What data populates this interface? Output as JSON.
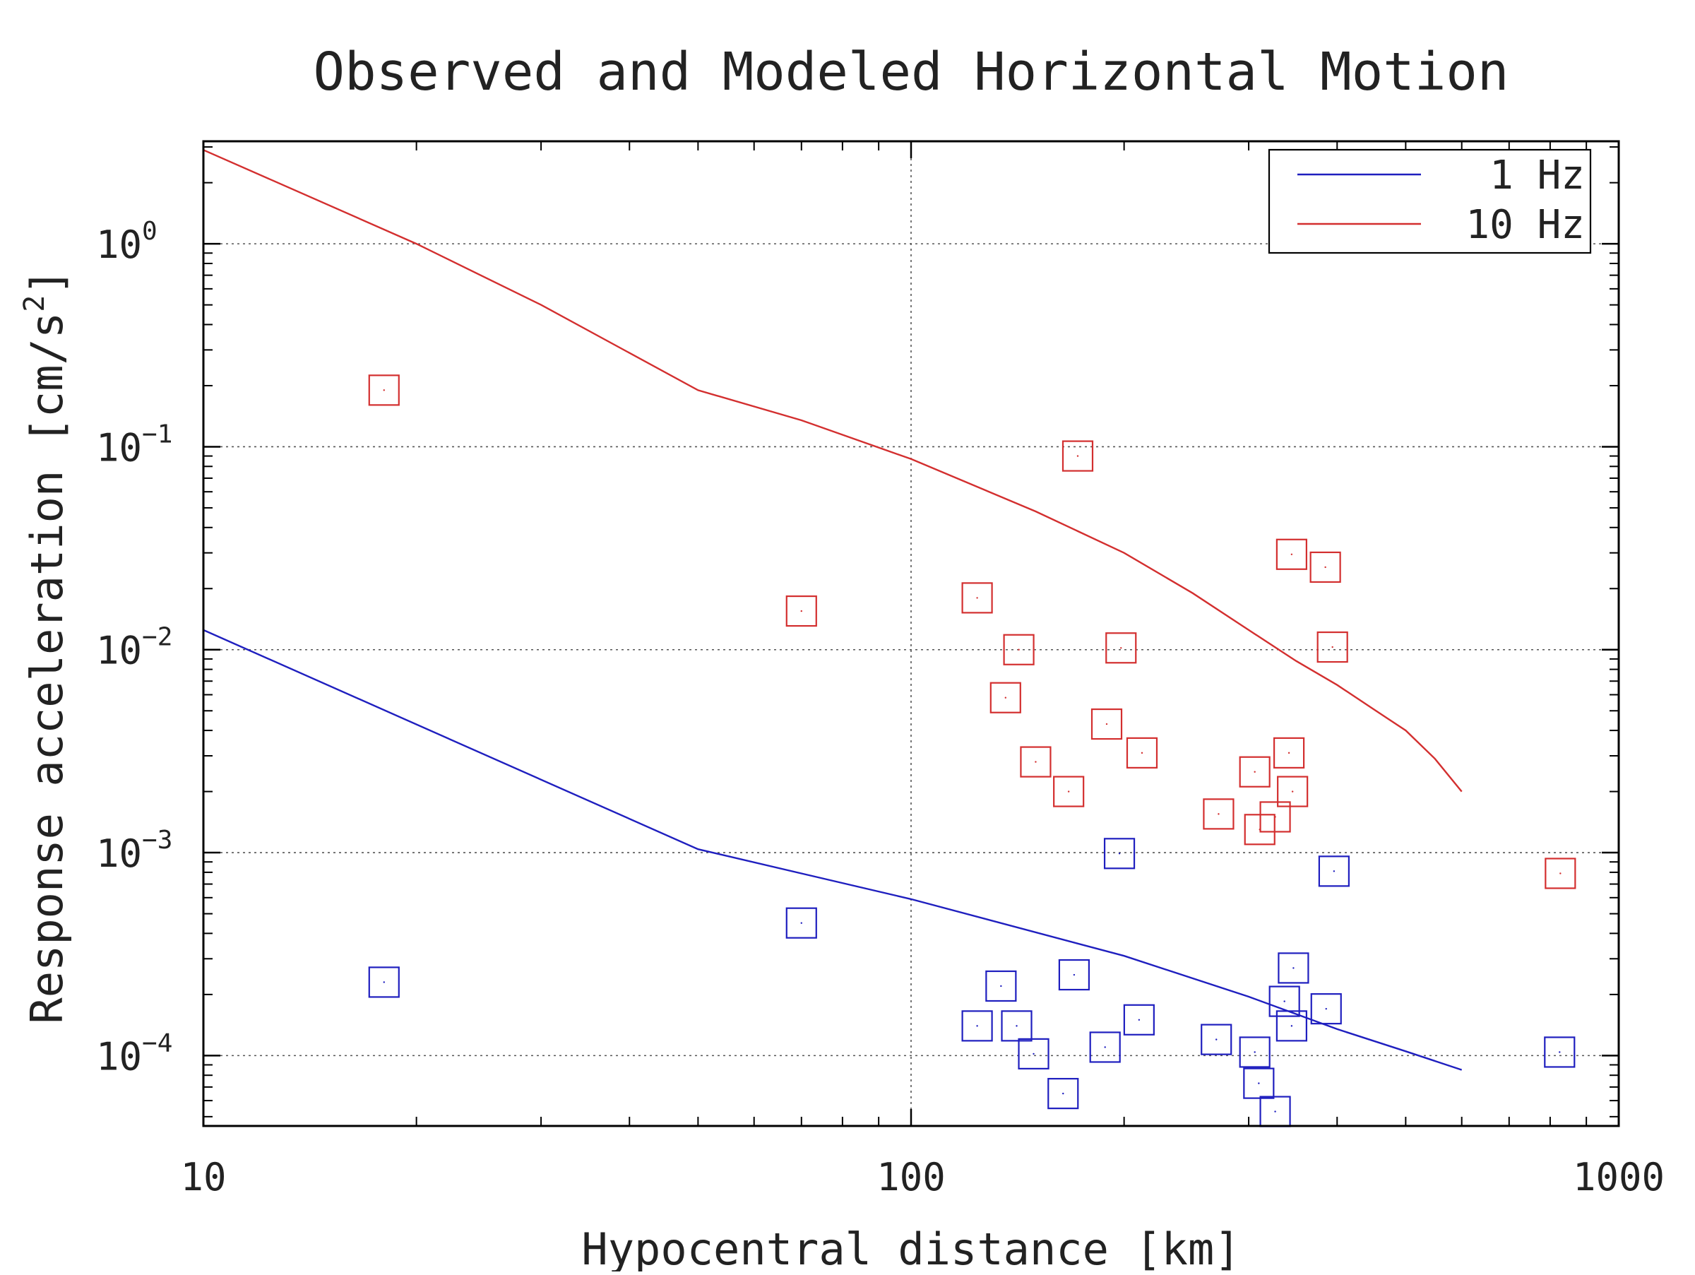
{
  "chart_data": {
    "type": "scatter",
    "title": "Observed and Modeled Horizontal Motion",
    "xlabel": "Hypocentral distance [km]",
    "ylabel": {
      "text": "Response acceleration [cm/s",
      "superscript": "2",
      "suffix": "]"
    },
    "x_scale": "log",
    "y_scale": "log",
    "xlim": [
      10,
      1000
    ],
    "ylim": [
      4.5e-05,
      3.2
    ],
    "x_ticks": [
      {
        "value": 10,
        "label": "10"
      },
      {
        "value": 100,
        "label": "100"
      },
      {
        "value": 1000,
        "label": "1000"
      }
    ],
    "y_ticks": [
      {
        "value": 1,
        "base": "10",
        "exp": "0"
      },
      {
        "value": 0.1,
        "base": "10",
        "exp": "−1"
      },
      {
        "value": 0.01,
        "base": "10",
        "exp": "−2"
      },
      {
        "value": 0.001,
        "base": "10",
        "exp": "−3"
      },
      {
        "value": 0.0001,
        "base": "10",
        "exp": "−4"
      }
    ],
    "grid": true,
    "legend_position": "top-right",
    "series": [
      {
        "name": "1 Hz",
        "color": "#1f1fbf",
        "line": {
          "x": [
            10,
            50,
            100,
            200,
            300,
            400,
            500,
            600
          ],
          "y": [
            0.0125,
            0.00104,
            0.00059,
            0.00031,
            0.000195,
            0.000135,
            0.000105,
            8.5e-05
          ]
        },
        "points": [
          {
            "x": 18,
            "y": 0.00023
          },
          {
            "x": 70,
            "y": 0.00045
          },
          {
            "x": 124,
            "y": 0.00014
          },
          {
            "x": 134,
            "y": 0.00022
          },
          {
            "x": 141,
            "y": 0.00014
          },
          {
            "x": 149,
            "y": 0.000102
          },
          {
            "x": 164,
            "y": 6.5e-05
          },
          {
            "x": 170,
            "y": 0.00025
          },
          {
            "x": 188,
            "y": 0.00011
          },
          {
            "x": 197,
            "y": 0.00099
          },
          {
            "x": 210,
            "y": 0.00015
          },
          {
            "x": 270,
            "y": 0.00012
          },
          {
            "x": 306,
            "y": 0.000104
          },
          {
            "x": 310,
            "y": 7.3e-05
          },
          {
            "x": 327,
            "y": 5.3e-05
          },
          {
            "x": 337,
            "y": 0.000185
          },
          {
            "x": 345,
            "y": 0.00014
          },
          {
            "x": 347,
            "y": 0.00027
          },
          {
            "x": 386,
            "y": 0.00017
          },
          {
            "x": 396,
            "y": 0.00081
          },
          {
            "x": 825,
            "y": 0.000104
          }
        ]
      },
      {
        "name": "10 Hz",
        "color": "#d32f2f",
        "line": {
          "x": [
            10,
            20,
            30,
            50,
            70,
            100,
            150,
            200,
            250,
            300,
            350,
            400,
            450,
            500,
            550,
            600
          ],
          "y": [
            2.9,
            1.0,
            0.5,
            0.19,
            0.135,
            0.087,
            0.048,
            0.03,
            0.019,
            0.0125,
            0.0088,
            0.0067,
            0.0051,
            0.004,
            0.0029,
            0.002
          ]
        },
        "points": [
          {
            "x": 18,
            "y": 0.19
          },
          {
            "x": 70,
            "y": 0.0155
          },
          {
            "x": 124,
            "y": 0.018
          },
          {
            "x": 136,
            "y": 0.0058
          },
          {
            "x": 142,
            "y": 0.01
          },
          {
            "x": 150,
            "y": 0.0028
          },
          {
            "x": 167,
            "y": 0.002
          },
          {
            "x": 172,
            "y": 0.09
          },
          {
            "x": 189,
            "y": 0.0043
          },
          {
            "x": 198,
            "y": 0.0102
          },
          {
            "x": 212,
            "y": 0.0031
          },
          {
            "x": 272,
            "y": 0.00155
          },
          {
            "x": 306,
            "y": 0.0025
          },
          {
            "x": 311,
            "y": 0.0013
          },
          {
            "x": 327,
            "y": 0.0015
          },
          {
            "x": 342,
            "y": 0.0031
          },
          {
            "x": 345,
            "y": 0.0295
          },
          {
            "x": 346,
            "y": 0.002
          },
          {
            "x": 385,
            "y": 0.0255
          },
          {
            "x": 394,
            "y": 0.0103
          },
          {
            "x": 827,
            "y": 0.00079
          }
        ]
      }
    ]
  }
}
